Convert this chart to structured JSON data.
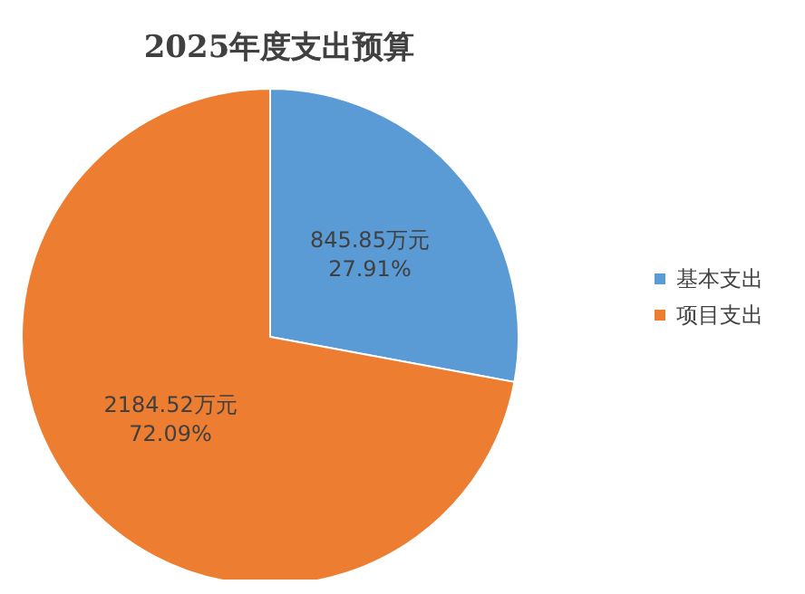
{
  "chart_data": {
    "type": "pie",
    "title": "2025年度支出预算",
    "categories": [
      "基本支出",
      "项目支出"
    ],
    "values": [
      845.85,
      2184.52
    ],
    "colors": [
      "#5b9bd5",
      "#ed7d31"
    ],
    "value_labels": [
      "845.85万元\n27.91%",
      "2184.52万元\n72.09%"
    ],
    "legend": "right"
  }
}
